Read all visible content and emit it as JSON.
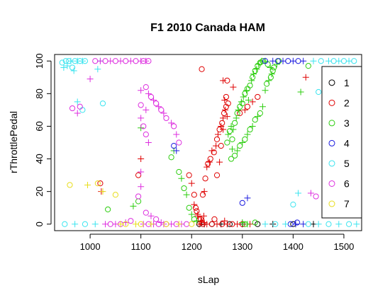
{
  "chart_data": {
    "type": "scatter",
    "title": "F1 2010 Canada HAM",
    "xlabel": "sLap",
    "ylabel": "rThrottlePedal",
    "xlim": [
      930,
      1535
    ],
    "ylim": [
      -4,
      104
    ],
    "x_ticks": [
      1000,
      1100,
      1200,
      1300,
      1400,
      1500
    ],
    "y_ticks": [
      0,
      20,
      40,
      60,
      80,
      100
    ],
    "grid": false,
    "legend_position": "right",
    "series": [
      {
        "name": "1",
        "color": "#000000",
        "points": [
          [
            1215,
            0
          ],
          [
            1225,
            0
          ],
          [
            1240,
            0
          ],
          [
            1258,
            0
          ],
          [
            1275,
            0
          ],
          [
            1300,
            0
          ],
          [
            1330,
            0
          ],
          [
            1360,
            0
          ],
          [
            1400,
            0
          ],
          [
            1440,
            0
          ]
        ]
      },
      {
        "name": "2",
        "color": "#df0000",
        "points": [
          [
            1020,
            25
          ],
          [
            1022,
            20
          ],
          [
            1095,
            30
          ],
          [
            1100,
            40
          ],
          [
            1195,
            30
          ],
          [
            1200,
            25
          ],
          [
            1205,
            18
          ],
          [
            1205,
            12
          ],
          [
            1210,
            8
          ],
          [
            1212,
            5
          ],
          [
            1215,
            3
          ],
          [
            1218,
            2
          ],
          [
            1220,
            1
          ],
          [
            1215,
            0
          ],
          [
            1222,
            0
          ],
          [
            1230,
            0
          ],
          [
            1240,
            0
          ],
          [
            1250,
            0
          ],
          [
            1260,
            0
          ],
          [
            1270,
            0
          ],
          [
            1280,
            0
          ],
          [
            1290,
            0
          ],
          [
            1300,
            0
          ],
          [
            1315,
            0
          ],
          [
            1208,
            10
          ],
          [
            1212,
            6
          ],
          [
            1218,
            3
          ],
          [
            1224,
            5
          ],
          [
            1222,
            18
          ],
          [
            1225,
            20
          ],
          [
            1227,
            28
          ],
          [
            1230,
            35
          ],
          [
            1232,
            37
          ],
          [
            1235,
            38
          ],
          [
            1237,
            40
          ],
          [
            1240,
            45
          ],
          [
            1244,
            44
          ],
          [
            1248,
            48
          ],
          [
            1250,
            52
          ],
          [
            1252,
            55
          ],
          [
            1255,
            58
          ],
          [
            1258,
            60
          ],
          [
            1260,
            62
          ],
          [
            1262,
            65
          ],
          [
            1264,
            68
          ],
          [
            1266,
            70
          ],
          [
            1268,
            72
          ],
          [
            1270,
            66
          ],
          [
            1272,
            74
          ],
          [
            1262,
            58
          ],
          [
            1258,
            48
          ],
          [
            1255,
            38
          ],
          [
            1250,
            30
          ],
          [
            1265,
            76
          ],
          [
            1268,
            78
          ],
          [
            1262,
            88
          ],
          [
            1270,
            88
          ],
          [
            1282,
            84
          ],
          [
            1295,
            68
          ],
          [
            1305,
            70
          ],
          [
            1310,
            72
          ],
          [
            1320,
            75
          ],
          [
            1330,
            78
          ],
          [
            1425,
            90
          ],
          [
            1220,
            95
          ],
          [
            1225,
            1
          ],
          [
            1245,
            3
          ],
          [
            1265,
            2
          ]
        ]
      },
      {
        "name": "3",
        "color": "#2bcd0d",
        "points": [
          [
            1035,
            9
          ],
          [
            1085,
            11
          ],
          [
            1095,
            14
          ],
          [
            1100,
            59
          ],
          [
            1160,
            41
          ],
          [
            1165,
            45
          ],
          [
            1175,
            32
          ],
          [
            1180,
            28
          ],
          [
            1185,
            22
          ],
          [
            1190,
            18
          ],
          [
            1195,
            10
          ],
          [
            1200,
            6
          ],
          [
            1205,
            3
          ],
          [
            1210,
            2
          ],
          [
            1270,
            50
          ],
          [
            1272,
            55
          ],
          [
            1275,
            57
          ],
          [
            1278,
            60
          ],
          [
            1280,
            52
          ],
          [
            1282,
            58
          ],
          [
            1285,
            62
          ],
          [
            1288,
            65
          ],
          [
            1290,
            68
          ],
          [
            1292,
            70
          ],
          [
            1295,
            72
          ],
          [
            1298,
            75
          ],
          [
            1300,
            74
          ],
          [
            1302,
            78
          ],
          [
            1305,
            80
          ],
          [
            1308,
            82
          ],
          [
            1310,
            83
          ],
          [
            1312,
            76
          ],
          [
            1315,
            85
          ],
          [
            1318,
            88
          ],
          [
            1320,
            90
          ],
          [
            1322,
            92
          ],
          [
            1325,
            94
          ],
          [
            1328,
            95
          ],
          [
            1330,
            97
          ],
          [
            1332,
            98
          ],
          [
            1335,
            99
          ],
          [
            1338,
            100
          ],
          [
            1340,
            100
          ],
          [
            1345,
            100
          ],
          [
            1350,
            98
          ],
          [
            1355,
            96
          ],
          [
            1360,
            94
          ],
          [
            1345,
            82
          ],
          [
            1348,
            86
          ],
          [
            1352,
            88
          ],
          [
            1356,
            90
          ],
          [
            1340,
            72
          ],
          [
            1335,
            68
          ],
          [
            1330,
            66
          ],
          [
            1325,
            64
          ],
          [
            1320,
            60
          ],
          [
            1315,
            58
          ],
          [
            1310,
            55
          ],
          [
            1305,
            52
          ],
          [
            1300,
            50
          ],
          [
            1295,
            48
          ],
          [
            1290,
            45
          ],
          [
            1285,
            42
          ],
          [
            1280,
            46
          ],
          [
            1278,
            40
          ],
          [
            1358,
            92
          ],
          [
            1362,
            96
          ],
          [
            1368,
            98
          ],
          [
            1372,
            100
          ],
          [
            1415,
            81
          ],
          [
            1430,
            97
          ],
          [
            1300,
            1
          ],
          [
            1305,
            0
          ],
          [
            1310,
            0
          ],
          [
            1325,
            1
          ]
        ]
      },
      {
        "name": "4",
        "color": "#1a1adf",
        "points": [
          [
            1165,
            48
          ],
          [
            1170,
            45
          ],
          [
            1300,
            13
          ],
          [
            1310,
            16
          ],
          [
            1345,
            100
          ],
          [
            1360,
            100
          ],
          [
            1370,
            100
          ],
          [
            1380,
            100
          ],
          [
            1390,
            100
          ],
          [
            1400,
            100
          ],
          [
            1410,
            100
          ],
          [
            1420,
            100
          ],
          [
            1395,
            0
          ],
          [
            1405,
            0
          ],
          [
            1408,
            1
          ],
          [
            1420,
            0
          ]
        ]
      },
      {
        "name": "5",
        "color": "#3ae4ef",
        "points": [
          [
            945,
            99
          ],
          [
            948,
            96
          ],
          [
            952,
            100
          ],
          [
            955,
            97
          ],
          [
            958,
            100
          ],
          [
            962,
            100
          ],
          [
            965,
            96
          ],
          [
            968,
            94
          ],
          [
            970,
            100
          ],
          [
            975,
            100
          ],
          [
            980,
            100
          ],
          [
            985,
            100
          ],
          [
            990,
            100
          ],
          [
            1015,
            95
          ],
          [
            1025,
            74
          ],
          [
            975,
            75
          ],
          [
            985,
            70
          ],
          [
            1020,
            100
          ],
          [
            1400,
            12
          ],
          [
            1410,
            19
          ],
          [
            1450,
            81
          ],
          [
            1470,
            100
          ],
          [
            1480,
            100
          ],
          [
            1490,
            100
          ],
          [
            1500,
            100
          ],
          [
            1510,
            100
          ],
          [
            1520,
            100
          ],
          [
            1440,
            100
          ],
          [
            1455,
            100
          ],
          [
            1345,
            0
          ],
          [
            1365,
            0
          ],
          [
            1385,
            0
          ],
          [
            1430,
            0
          ],
          [
            1450,
            0
          ],
          [
            1470,
            0
          ],
          [
            1490,
            0
          ],
          [
            1510,
            0
          ],
          [
            1525,
            0
          ],
          [
            950,
            0
          ],
          [
            970,
            0
          ],
          [
            990,
            0
          ],
          [
            1010,
            0
          ]
        ]
      },
      {
        "name": "6",
        "color": "#dd2ddf",
        "points": [
          [
            965,
            71
          ],
          [
            975,
            68
          ],
          [
            980,
            72
          ],
          [
            1000,
            89
          ],
          [
            1010,
            100
          ],
          [
            1020,
            100
          ],
          [
            1030,
            100
          ],
          [
            1040,
            100
          ],
          [
            1050,
            100
          ],
          [
            1060,
            100
          ],
          [
            1070,
            100
          ],
          [
            1080,
            100
          ],
          [
            1090,
            100
          ],
          [
            1100,
            100
          ],
          [
            1105,
            100
          ],
          [
            1110,
            100
          ],
          [
            1115,
            100
          ],
          [
            1100,
            82
          ],
          [
            1110,
            84
          ],
          [
            1115,
            80
          ],
          [
            1120,
            78
          ],
          [
            1125,
            76
          ],
          [
            1130,
            74
          ],
          [
            1135,
            72
          ],
          [
            1140,
            70
          ],
          [
            1145,
            68
          ],
          [
            1150,
            65
          ],
          [
            1160,
            62
          ],
          [
            1165,
            60
          ],
          [
            1170,
            55
          ],
          [
            1175,
            50
          ],
          [
            1100,
            65
          ],
          [
            1110,
            55
          ],
          [
            1115,
            50
          ],
          [
            1100,
            73
          ],
          [
            1110,
            70
          ],
          [
            1105,
            60
          ],
          [
            1100,
            32
          ],
          [
            1110,
            7
          ],
          [
            1120,
            5
          ],
          [
            1130,
            3
          ],
          [
            1140,
            1
          ],
          [
            1150,
            0
          ],
          [
            1160,
            0
          ],
          [
            1170,
            0
          ],
          [
            1180,
            0
          ],
          [
            1190,
            0
          ],
          [
            1435,
            19
          ],
          [
            1445,
            17
          ],
          [
            1105,
            0
          ],
          [
            1115,
            0
          ],
          [
            1125,
            0
          ],
          [
            1135,
            0
          ],
          [
            1145,
            0
          ],
          [
            1095,
            17
          ],
          [
            1100,
            23
          ],
          [
            1080,
            2
          ],
          [
            1070,
            1
          ],
          [
            1060,
            0
          ],
          [
            1050,
            0
          ],
          [
            1040,
            0
          ],
          [
            1030,
            0
          ]
        ]
      },
      {
        "name": "7",
        "color": "#e8dd1b",
        "points": [
          [
            960,
            24
          ],
          [
            995,
            24
          ],
          [
            1015,
            25
          ],
          [
            1025,
            20
          ],
          [
            1050,
            18
          ],
          [
            1060,
            0
          ],
          [
            1070,
            0
          ],
          [
            1090,
            0
          ],
          [
            1100,
            0
          ],
          [
            1120,
            0
          ],
          [
            1150,
            0
          ],
          [
            1175,
            0
          ],
          [
            1200,
            0
          ]
        ]
      }
    ]
  }
}
